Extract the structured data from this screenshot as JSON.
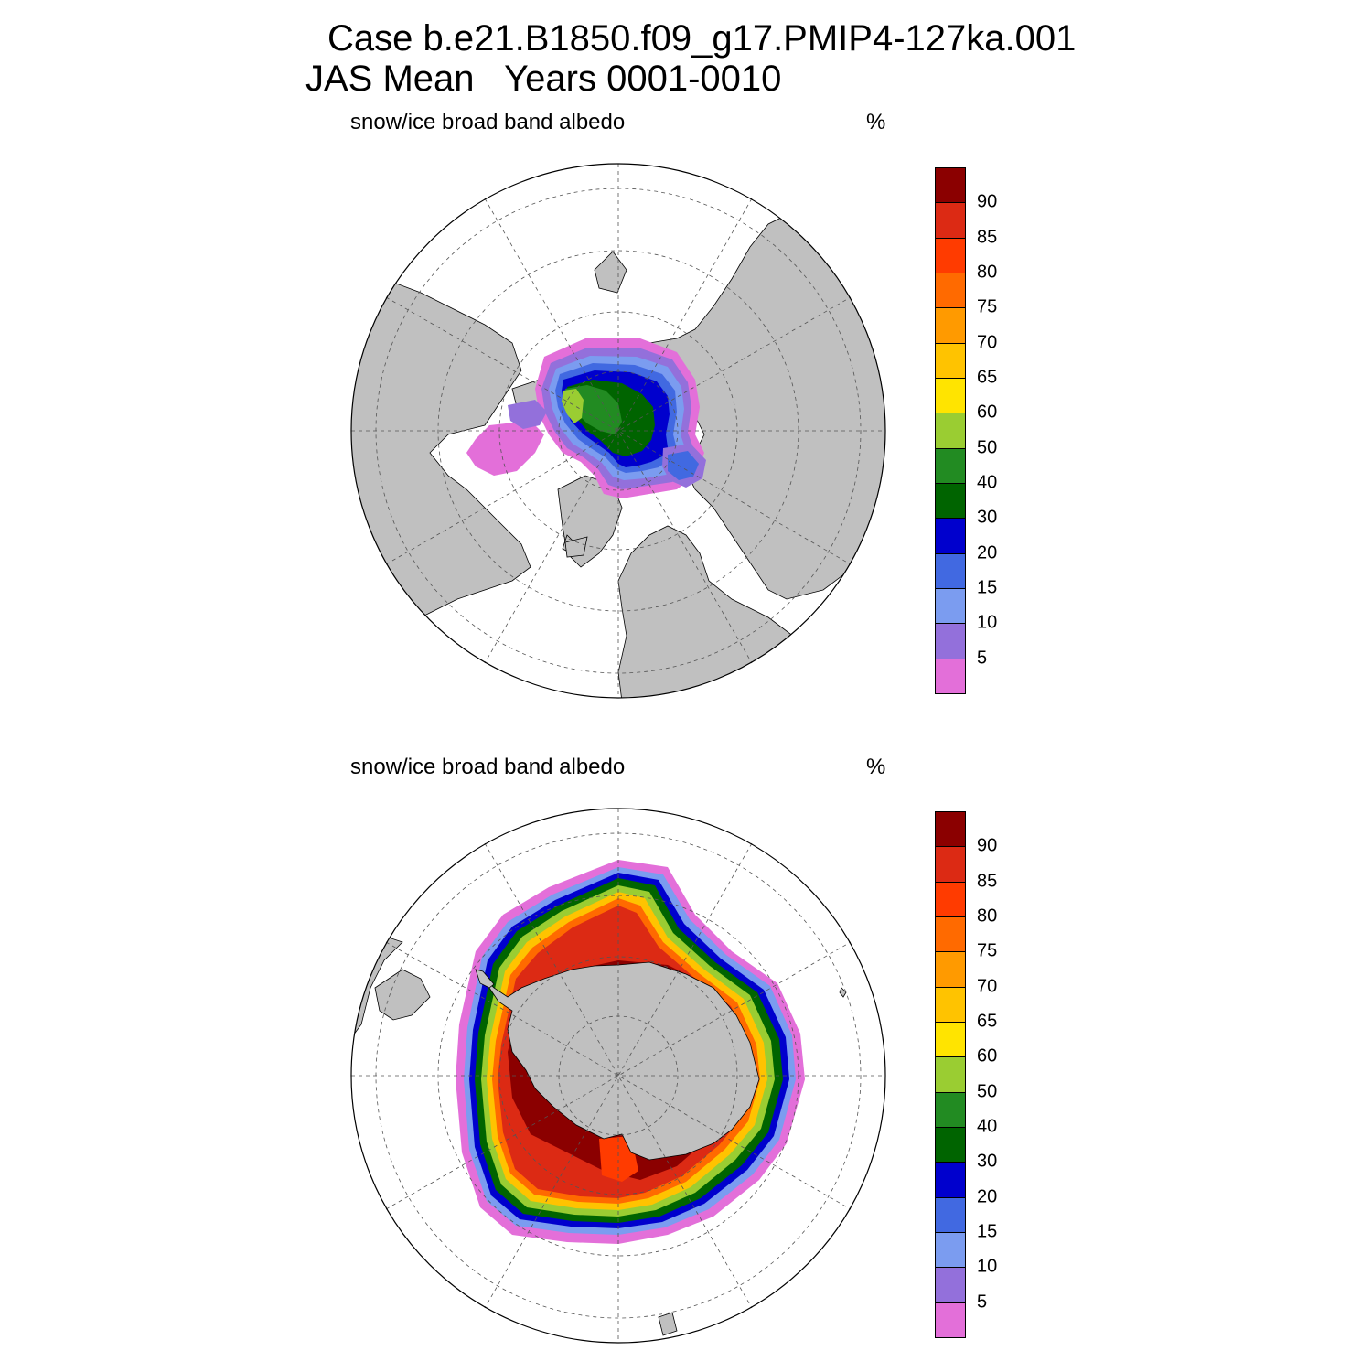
{
  "title_line1": "Case b.e21.B1850.f09_g17.PMIP4-127ka.001",
  "title_line2": "JAS Mean   Years 0001-0010",
  "panels": [
    {
      "label": "snow/ice broad band albedo",
      "units": "%",
      "hemisphere": "north"
    },
    {
      "label": "snow/ice broad band albedo",
      "units": "%",
      "hemisphere": "south"
    }
  ],
  "colorbar": {
    "colors": [
      "#e36fd9",
      "#9370db",
      "#7b9cf0",
      "#4169e1",
      "#0000cd",
      "#006400",
      "#228b22",
      "#9acd32",
      "#ffe400",
      "#ffc300",
      "#ff9a00",
      "#ff6a00",
      "#ff3b00",
      "#dc2a14",
      "#8b0000"
    ],
    "labels": [
      "5",
      "10",
      "15",
      "20",
      "30",
      "40",
      "50",
      "60",
      "65",
      "70",
      "75",
      "80",
      "85",
      "90"
    ]
  },
  "map_style": {
    "land_color": "#c0c0c0",
    "ocean_color": "#ffffff",
    "grid": "dashed"
  }
}
